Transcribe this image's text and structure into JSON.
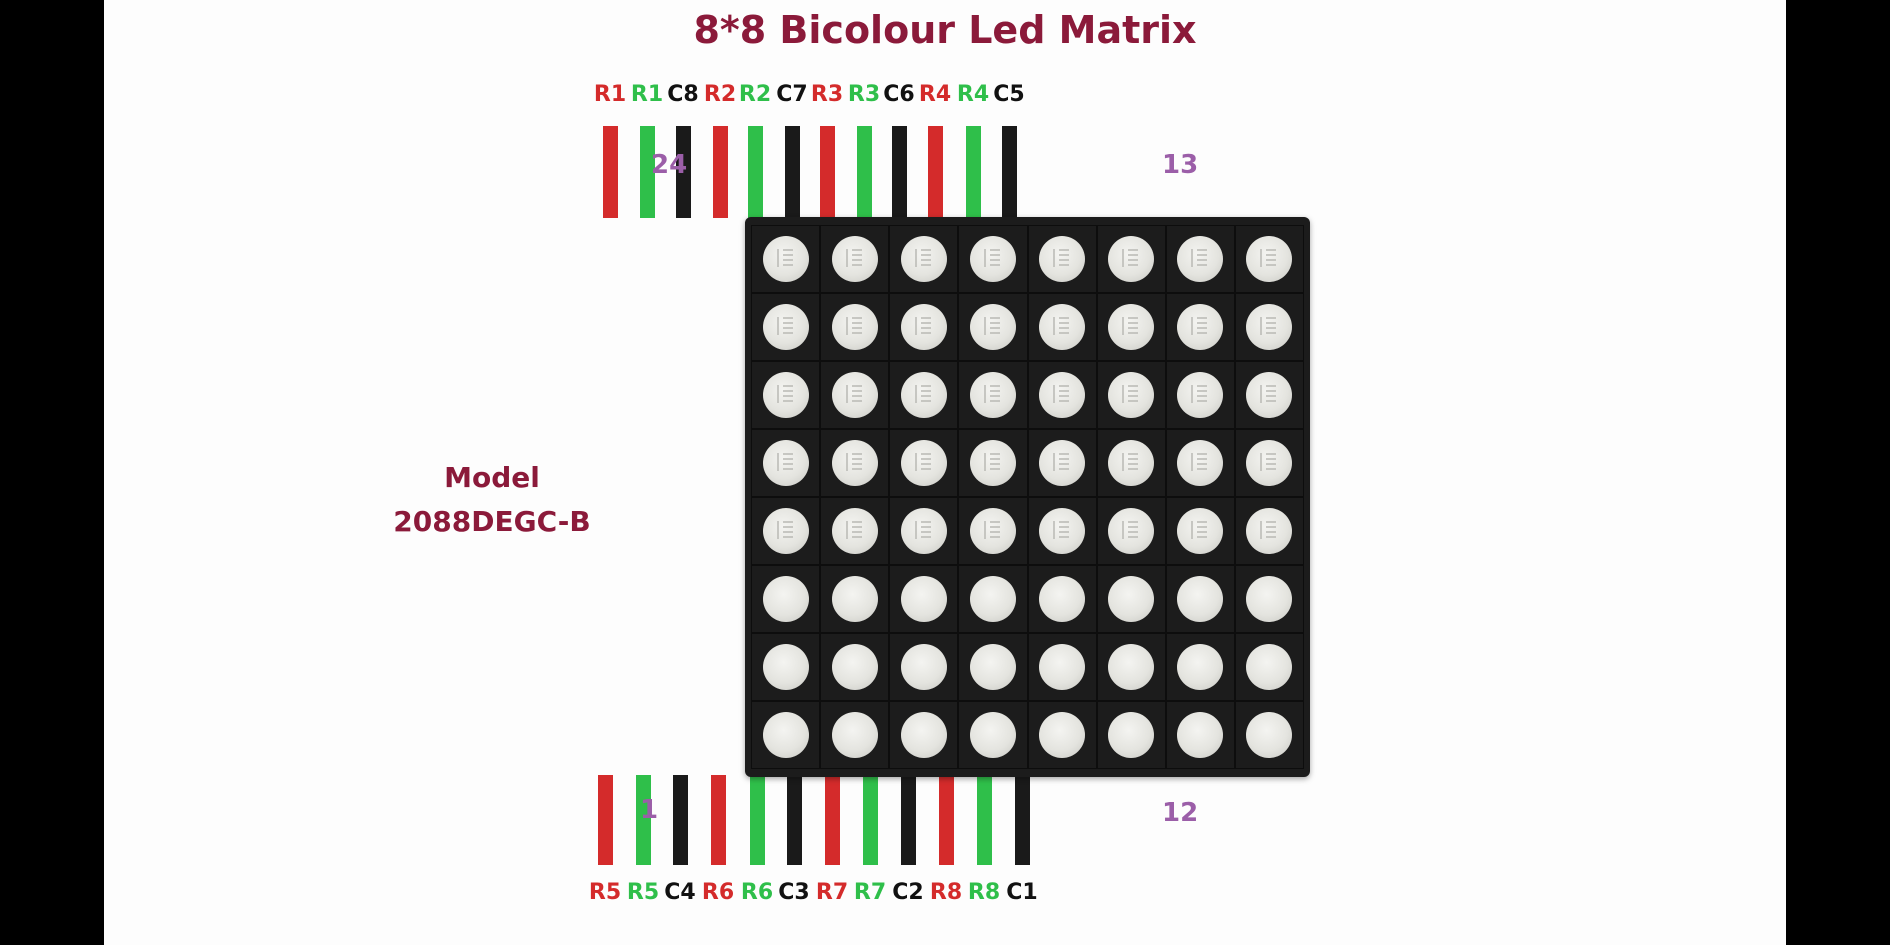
{
  "title": "8*8 Bicolour Led Matrix",
  "model": {
    "line1": "Model",
    "line2": "2088DEGC-B"
  },
  "pin_numbers": {
    "top_left": "24",
    "top_right": "13",
    "bottom_left": "1",
    "bottom_right": "12"
  },
  "colors": {
    "red": "#d42b2b",
    "green": "#2fbf4a",
    "black": "#1a1a1a",
    "title": "#8b1a3a",
    "pin_number": "#9b5ea8"
  },
  "top_pins": [
    {
      "label": "R1",
      "color": "red"
    },
    {
      "label": "R1",
      "color": "green"
    },
    {
      "label": "C8",
      "color": "black"
    },
    {
      "label": "R2",
      "color": "red"
    },
    {
      "label": "R2",
      "color": "green"
    },
    {
      "label": "C7",
      "color": "black"
    },
    {
      "label": "R3",
      "color": "red"
    },
    {
      "label": "R3",
      "color": "green"
    },
    {
      "label": "C6",
      "color": "black"
    },
    {
      "label": "R4",
      "color": "red"
    },
    {
      "label": "R4",
      "color": "green"
    },
    {
      "label": "C5",
      "color": "black"
    }
  ],
  "bottom_pins": [
    {
      "label": "R5",
      "color": "red"
    },
    {
      "label": "R5",
      "color": "green"
    },
    {
      "label": "C4",
      "color": "black"
    },
    {
      "label": "R6",
      "color": "red"
    },
    {
      "label": "R6",
      "color": "green"
    },
    {
      "label": "C3",
      "color": "black"
    },
    {
      "label": "R7",
      "color": "red"
    },
    {
      "label": "R7",
      "color": "green"
    },
    {
      "label": "C2",
      "color": "black"
    },
    {
      "label": "R8",
      "color": "red"
    },
    {
      "label": "R8",
      "color": "green"
    },
    {
      "label": "C1",
      "color": "black"
    }
  ],
  "matrix": {
    "rows": 8,
    "columns": 8,
    "marked_rows": 5
  }
}
